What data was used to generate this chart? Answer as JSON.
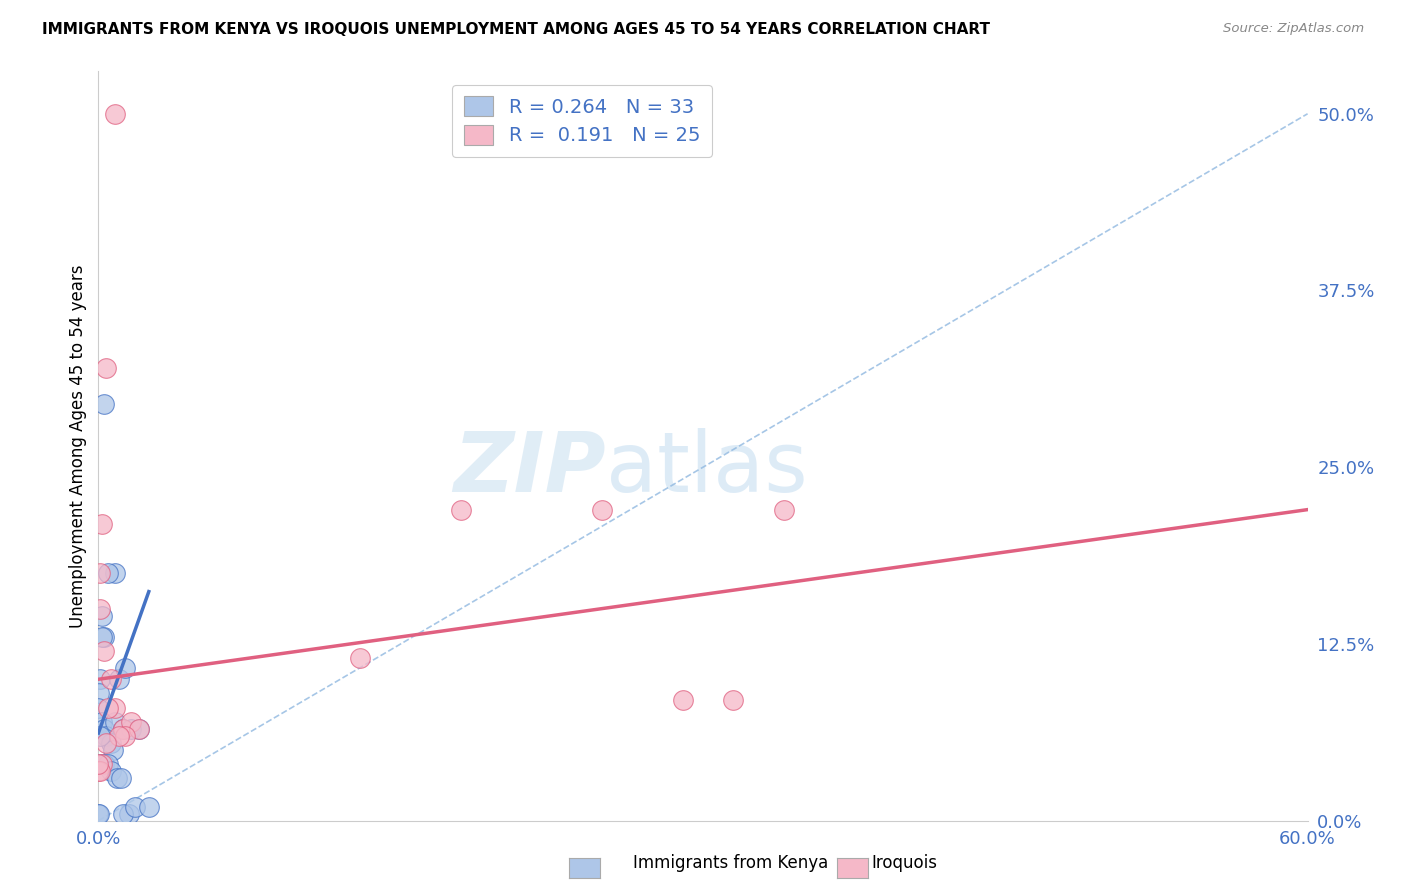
{
  "title": "IMMIGRANTS FROM KENYA VS IROQUOIS UNEMPLOYMENT AMONG AGES 45 TO 54 YEARS CORRELATION CHART",
  "source": "Source: ZipAtlas.com",
  "ylabel": "Unemployment Among Ages 45 to 54 years",
  "ytick_labels": [
    "0.0%",
    "12.5%",
    "25.0%",
    "37.5%",
    "50.0%"
  ],
  "ytick_values": [
    0.0,
    0.125,
    0.25,
    0.375,
    0.5
  ],
  "xlim": [
    0.0,
    0.6
  ],
  "ylim": [
    0.0,
    0.53
  ],
  "legend_label1": "Immigrants from Kenya",
  "legend_label2": "Iroquois",
  "R1": "0.264",
  "N1": "33",
  "R2": "0.191",
  "N2": "25",
  "color_blue": "#aec6e8",
  "color_pink": "#f5b8c8",
  "line_blue": "#4472c4",
  "line_pink": "#e06080",
  "scatter_blue_x": [
    0.003,
    0.008,
    0.005,
    0.002,
    0.001,
    0.0005,
    0.0,
    0.002,
    0.003,
    0.004,
    0.006,
    0.007,
    0.01,
    0.008,
    0.013,
    0.012,
    0.016,
    0.02,
    0.001,
    0.0008,
    0.003,
    0.005,
    0.006,
    0.009,
    0.011,
    0.003,
    0.002,
    0.0,
    0.0005,
    0.015,
    0.012,
    0.018,
    0.025
  ],
  "scatter_blue_y": [
    0.295,
    0.175,
    0.175,
    0.145,
    0.1,
    0.09,
    0.08,
    0.07,
    0.065,
    0.06,
    0.055,
    0.05,
    0.1,
    0.07,
    0.108,
    0.065,
    0.065,
    0.065,
    0.06,
    0.04,
    0.04,
    0.04,
    0.035,
    0.03,
    0.03,
    0.13,
    0.13,
    0.005,
    0.005,
    0.005,
    0.005,
    0.01,
    0.01
  ],
  "scatter_pink_x": [
    0.008,
    0.004,
    0.002,
    0.0008,
    0.001,
    0.003,
    0.006,
    0.008,
    0.012,
    0.016,
    0.02,
    0.013,
    0.01,
    0.004,
    0.002,
    0.0,
    0.0008,
    0.005,
    0.18,
    0.25,
    0.29,
    0.315,
    0.34,
    0.0,
    0.13
  ],
  "scatter_pink_y": [
    0.5,
    0.32,
    0.21,
    0.175,
    0.15,
    0.12,
    0.1,
    0.08,
    0.065,
    0.07,
    0.065,
    0.06,
    0.06,
    0.055,
    0.04,
    0.035,
    0.035,
    0.08,
    0.22,
    0.22,
    0.085,
    0.085,
    0.22,
    0.04,
    0.115
  ],
  "dashed_line_x": [
    0.0,
    0.6
  ],
  "dashed_line_y": [
    0.0,
    0.5
  ],
  "blue_trend_x": [
    0.0,
    0.025
  ],
  "blue_trend_y": [
    0.062,
    0.162
  ],
  "pink_trend_x": [
    0.0,
    0.6
  ],
  "pink_trend_y": [
    0.1,
    0.22
  ],
  "watermark_zip": "ZIP",
  "watermark_atlas": "atlas",
  "background_color": "#ffffff",
  "grid_color": "#c8c8c8"
}
